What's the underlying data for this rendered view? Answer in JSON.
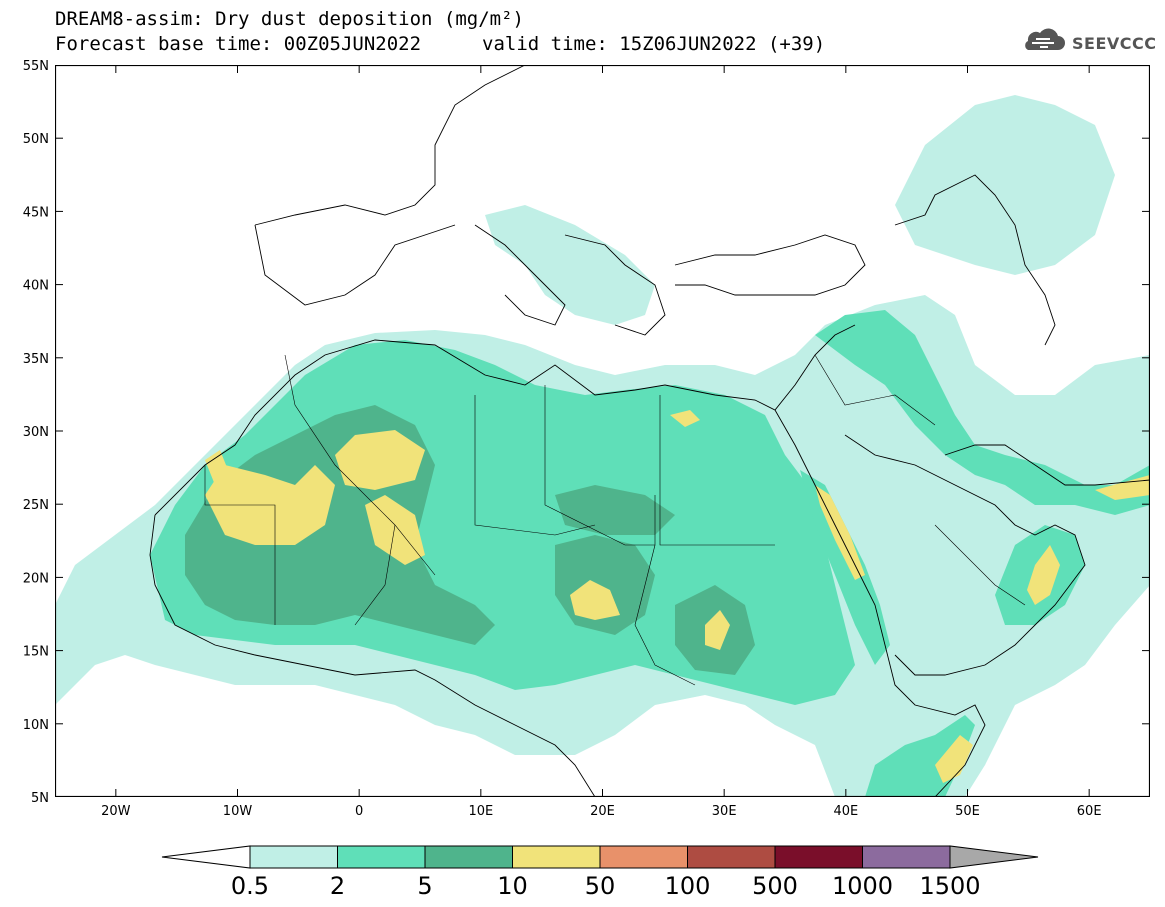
{
  "header": {
    "title_line1": "DREAM8-assim: Dry dust deposition (mg/m²)",
    "title_line2": "Forecast base time: 00Z05JUN2022",
    "valid_time": "valid time: 15Z06JUN2022 (+39)"
  },
  "logo": {
    "text": "SEEVCCC",
    "icon": "cloud-icon"
  },
  "map": {
    "lon_labels": [
      "20W",
      "10W",
      "0",
      "10E",
      "20E",
      "30E",
      "40E",
      "50E",
      "60E"
    ],
    "lon_values": [
      -20,
      -10,
      0,
      10,
      20,
      30,
      40,
      50,
      60
    ],
    "lat_labels": [
      "55N",
      "50N",
      "45N",
      "40N",
      "35N",
      "30N",
      "25N",
      "20N",
      "15N",
      "10N",
      "5N"
    ],
    "lat_values": [
      55,
      50,
      45,
      40,
      35,
      30,
      25,
      20,
      15,
      10,
      5
    ],
    "lon_range": [
      -25,
      65
    ],
    "lat_range": [
      5,
      55
    ]
  },
  "colorbar": {
    "labels": [
      "0.5",
      "2",
      "5",
      "10",
      "50",
      "100",
      "500",
      "1000",
      "1500"
    ],
    "colors": [
      "#c0efe6",
      "#5fdfb8",
      "#4fb48c",
      "#f1e37a",
      "#e8916a",
      "#ae4c42",
      "#7a0e2a",
      "#8c6b9e",
      "#a8a8a8"
    ]
  }
}
